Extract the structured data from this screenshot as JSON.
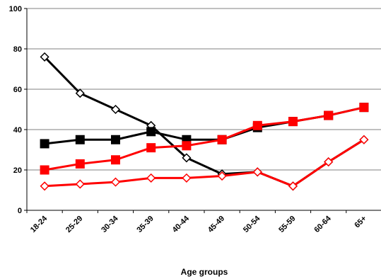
{
  "chart_data": {
    "type": "line",
    "title": "",
    "xlabel": "Age groups",
    "ylabel": "",
    "ylim": [
      0,
      100
    ],
    "yticks": [
      0,
      20,
      40,
      60,
      80,
      100
    ],
    "grid": true,
    "legend": "none",
    "categories": [
      "18-24",
      "25-29",
      "30-34",
      "35-39",
      "40-44",
      "45-49",
      "50-54",
      "55-59",
      "60-64",
      "65+"
    ],
    "series": [
      {
        "values": [
          76,
          58,
          50,
          42,
          26,
          18,
          19,
          12,
          24,
          35
        ],
        "color": "#000000",
        "marker": "diamond-open"
      },
      {
        "values": [
          33,
          35,
          35,
          39,
          35,
          35,
          41,
          44,
          47,
          51
        ],
        "color": "#000000",
        "marker": "square-filled"
      },
      {
        "values": [
          20,
          23,
          25,
          31,
          32,
          35,
          42,
          44,
          47,
          51
        ],
        "color": "#ff0000",
        "marker": "square-filled"
      },
      {
        "values": [
          12,
          13,
          14,
          16,
          16,
          17,
          19,
          12,
          24,
          35
        ],
        "color": "#ff0000",
        "marker": "diamond-open"
      }
    ]
  }
}
